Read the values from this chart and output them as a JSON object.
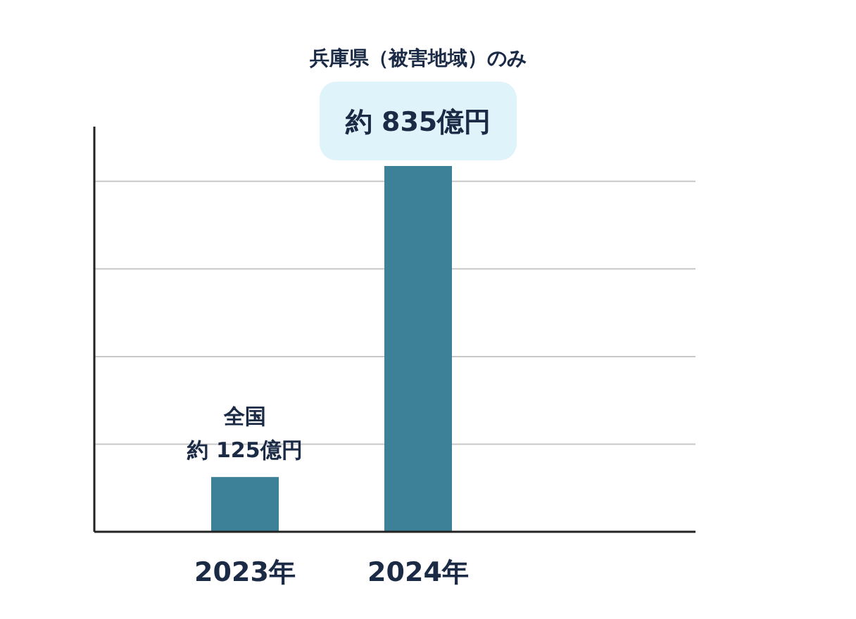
{
  "chart_data": {
    "type": "bar",
    "categories": [
      "2023年",
      "2024年"
    ],
    "values": [
      125,
      835
    ],
    "color": "#3d8198",
    "value_labels": [
      "約 125億円",
      "約 835億円"
    ],
    "annotations": [
      "兵庫県（被害地域）のみ",
      "全国"
    ],
    "yticks": [
      {
        "value": 0,
        "label": null
      },
      {
        "value": 200,
        "label": null
      },
      {
        "value": 400,
        "label": null
      },
      {
        "value": 600,
        "label": null
      },
      {
        "value": 800,
        "label": null
      }
    ],
    "grid": "y"
  }
}
